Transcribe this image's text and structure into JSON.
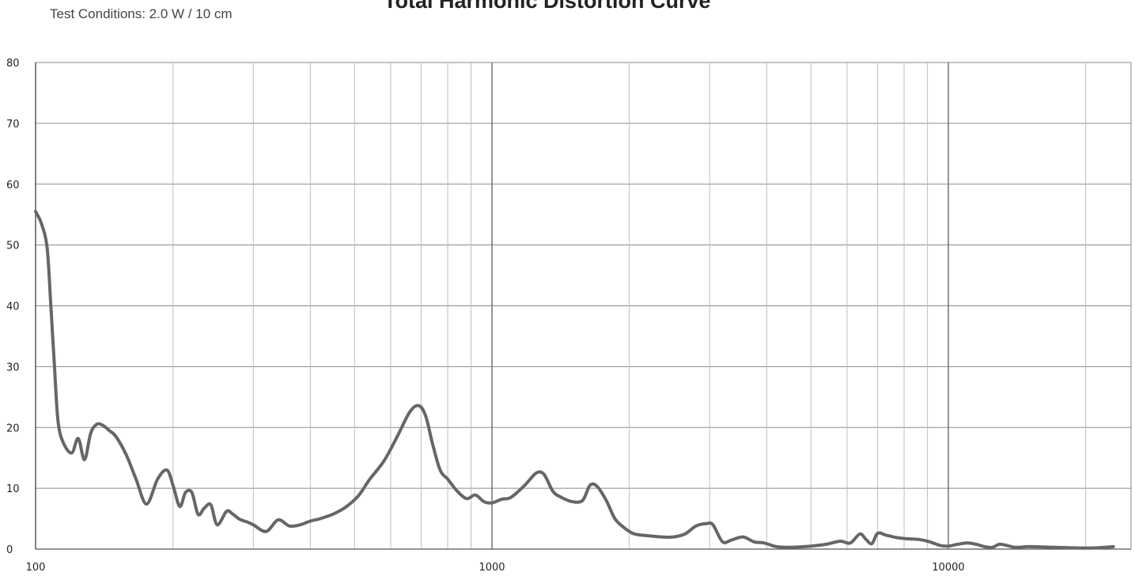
{
  "header": {
    "title": "Total Harmonic Distortion Curve",
    "conditions": "Test Conditions: 2.0 W / 10 cm"
  },
  "chart_data": {
    "type": "line",
    "title": "Total Harmonic Distortion Curve",
    "xlabel": "",
    "ylabel": "",
    "xscale": "log",
    "xlim": [
      100,
      40000
    ],
    "ylim": [
      0,
      80
    ],
    "grid": true,
    "line_color": "#666666",
    "x_ticks": [
      "100",
      "1000",
      "10000"
    ],
    "y_ticks": [
      "0",
      "10",
      "20",
      "30",
      "40",
      "50",
      "60",
      "70",
      "80"
    ],
    "series": [
      {
        "x": [
          100,
          103,
          106,
          108,
          110,
          112,
          115,
          120,
          124,
          128,
          132,
          136,
          140,
          145,
          150,
          158,
          166,
          175,
          185,
          194,
          200,
          207,
          213,
          220,
          227,
          234,
          242,
          250,
          262,
          270,
          280,
          290,
          300,
          320,
          340,
          360,
          380,
          400,
          420,
          450,
          480,
          510,
          540,
          580,
          620,
          660,
          690,
          715,
          740,
          770,
          800,
          840,
          880,
          920,
          960,
          1000,
          1050,
          1100,
          1180,
          1250,
          1300,
          1360,
          1420,
          1500,
          1580,
          1640,
          1700,
          1780,
          1860,
          1950,
          2050,
          2200,
          2350,
          2500,
          2650,
          2800,
          2950,
          3050,
          3200,
          3350,
          3550,
          3750,
          3950,
          4200,
          4500,
          5000,
          5400,
          5800,
          6100,
          6400,
          6600,
          6800,
          7000,
          7300,
          7700,
          8100,
          8600,
          9100,
          9600,
          10000,
          10500,
          11000,
          11500,
          12000,
          12500,
          13000,
          14000,
          15000,
          17000,
          19000,
          21000,
          23000
        ],
        "y": [
          55.5,
          53.5,
          49.5,
          40,
          30,
          21,
          17.5,
          15.8,
          18.2,
          14.7,
          19,
          20.5,
          20.4,
          19.5,
          18.5,
          15.5,
          11.5,
          7.4,
          11.5,
          13,
          10.5,
          7,
          9.3,
          9.3,
          5.7,
          6.7,
          7.3,
          4,
          6.2,
          5.8,
          4.9,
          4.5,
          4.0,
          2.9,
          4.8,
          3.8,
          4.0,
          4.6,
          5.0,
          5.8,
          7.0,
          8.8,
          11.5,
          14.5,
          18.5,
          22.5,
          23.6,
          22,
          17.5,
          13,
          11.5,
          9.5,
          8.3,
          8.9,
          7.8,
          7.6,
          8.2,
          8.5,
          10.5,
          12.5,
          12.3,
          9.5,
          8.5,
          7.8,
          8.0,
          10.5,
          10.3,
          8,
          5.0,
          3.5,
          2.5,
          2.2,
          2.0,
          2.0,
          2.5,
          3.8,
          4.2,
          4.0,
          1.2,
          1.5,
          2.0,
          1.2,
          1.0,
          0.4,
          0.3,
          0.5,
          0.8,
          1.3,
          1.0,
          2.5,
          1.6,
          0.9,
          2.6,
          2.3,
          1.9,
          1.7,
          1.6,
          1.2,
          0.6,
          0.5,
          0.8,
          1.0,
          0.8,
          0.4,
          0.3,
          0.8,
          0.3,
          0.4,
          0.3,
          0.2,
          0.2,
          0.4
        ]
      }
    ]
  }
}
